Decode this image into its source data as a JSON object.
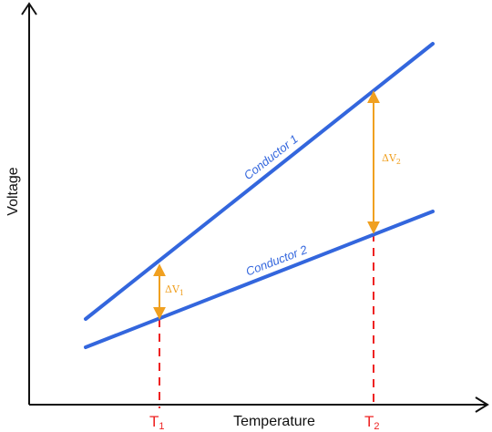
{
  "axes": {
    "x_label": "Temperature",
    "y_label": "Voltage"
  },
  "lines": [
    {
      "label": "Conductor 1",
      "color": "#3366dd"
    },
    {
      "label": "Conductor 2",
      "color": "#3366dd"
    }
  ],
  "differences": [
    {
      "symbol": "ΔV",
      "subscript": "1",
      "color": "#f0a020"
    },
    {
      "symbol": "ΔV",
      "subscript": "2",
      "color": "#f0a020"
    }
  ],
  "temperature_marks": [
    {
      "symbol": "T",
      "subscript": "1",
      "color": "#ee2222"
    },
    {
      "symbol": "T",
      "subscript": "2",
      "color": "#ee2222"
    }
  ],
  "colors": {
    "axis": "#111111",
    "conductor": "#3366dd",
    "delta_arrow": "#f0a020",
    "temperature_guide": "#ee2222"
  }
}
